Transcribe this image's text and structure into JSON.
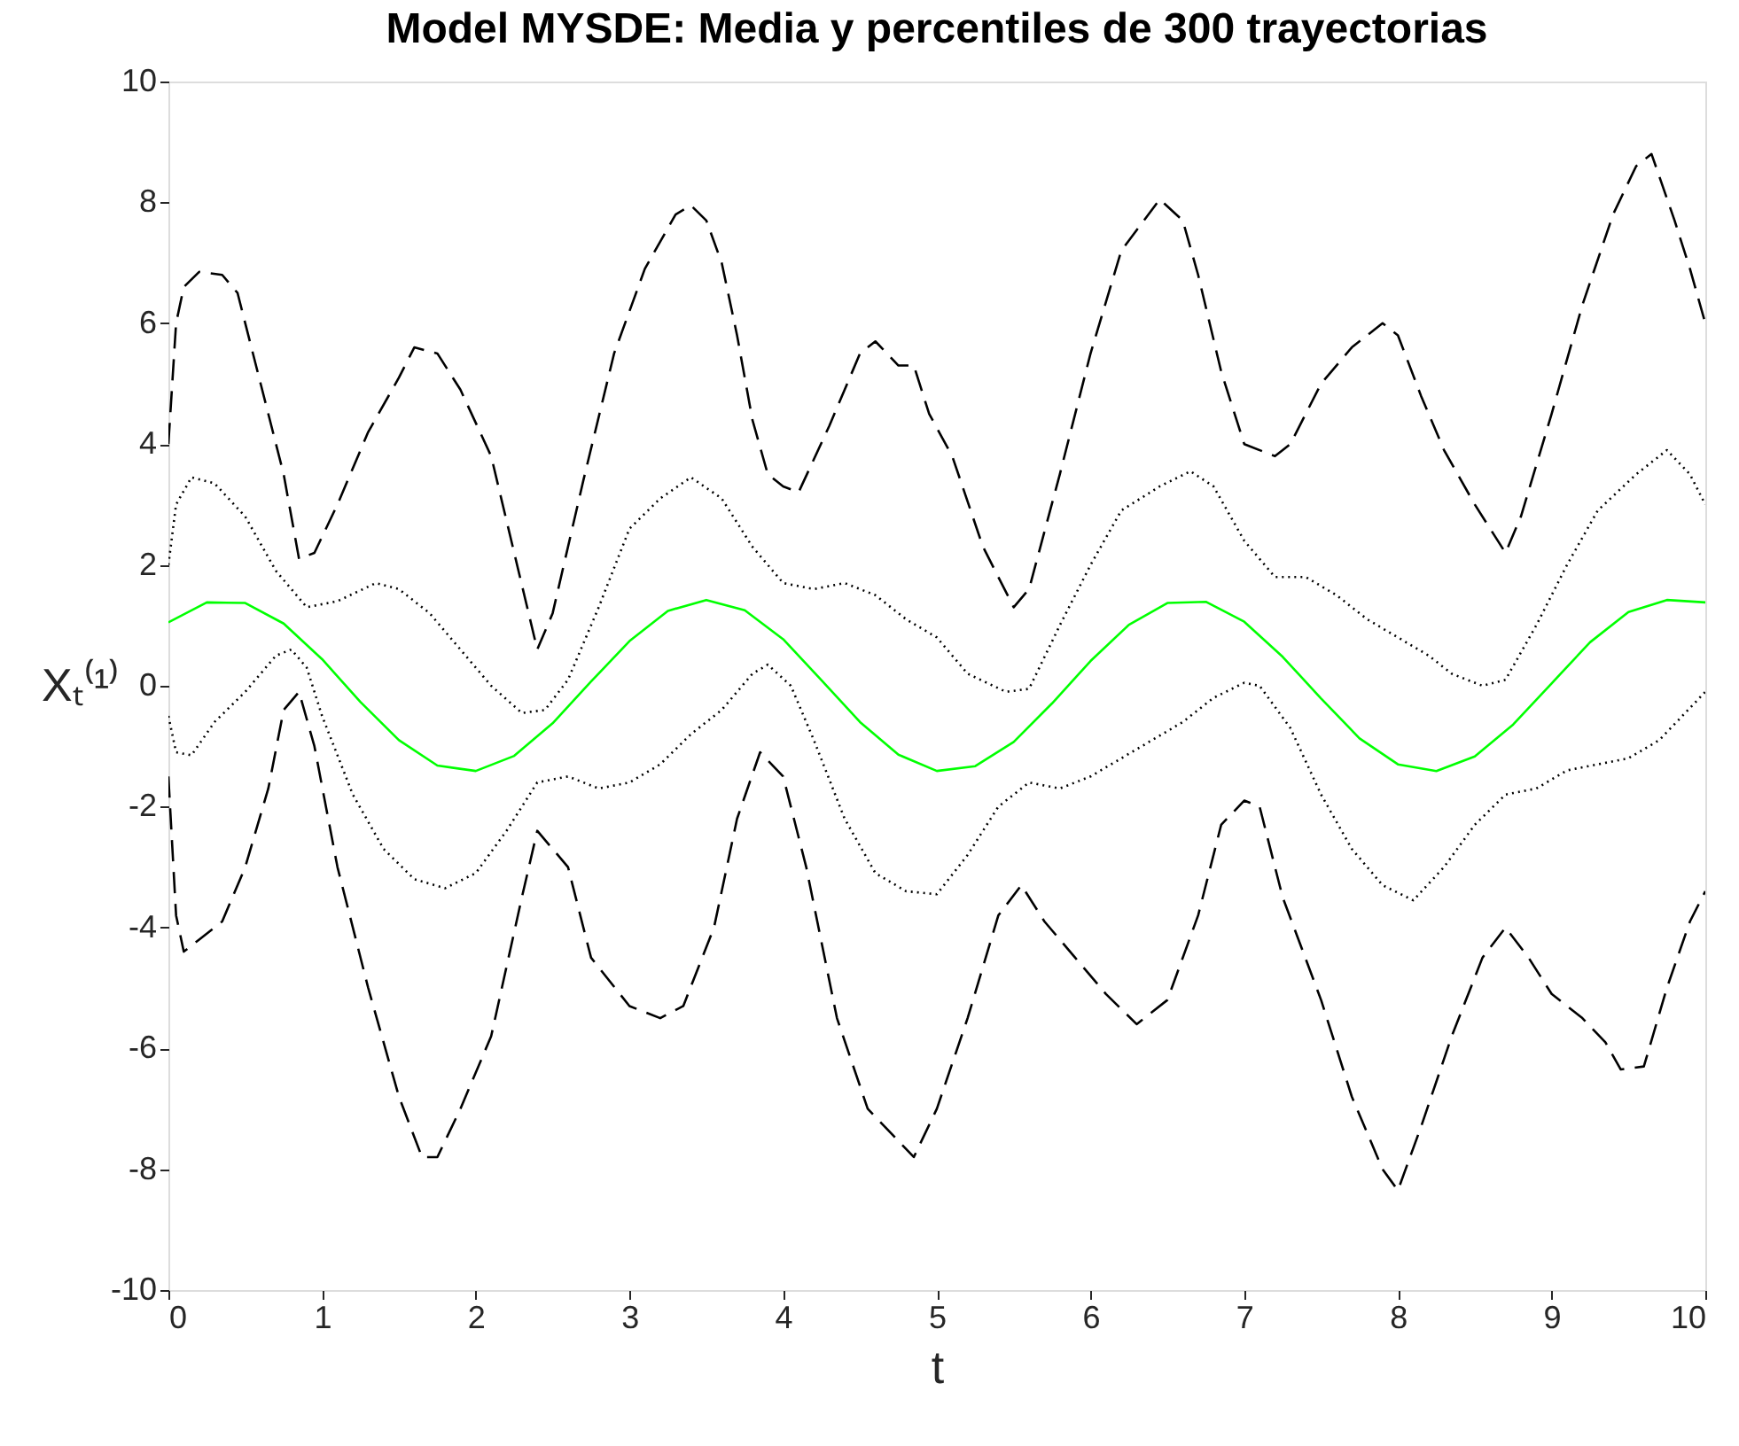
{
  "chart_data": {
    "type": "line",
    "title": "Model MYSDE: Media y percentiles de 300 trayectorias",
    "xlabel": "t",
    "ylabel": "Xₜ⁽¹⁾",
    "xlim": [
      0,
      10
    ],
    "xticks": [
      0,
      1,
      2,
      3,
      4,
      5,
      6,
      7,
      8,
      9,
      10
    ],
    "ylim": [
      -10,
      10
    ],
    "yticks": [
      -10,
      -8,
      -6,
      -4,
      -2,
      0,
      2,
      4,
      6,
      8,
      10
    ],
    "marker": "none",
    "series": [
      {
        "color": "#00ff00",
        "line_style": "solid",
        "x": [
          0,
          0.25,
          0.5,
          0.75,
          1,
          1.25,
          1.5,
          1.75,
          2,
          2.25,
          2.5,
          2.75,
          3,
          3.25,
          3.5,
          3.75,
          4,
          4.25,
          4.5,
          4.75,
          5,
          5.25,
          5.5,
          5.75,
          6,
          6.25,
          6.5,
          6.75,
          7,
          7.25,
          7.5,
          7.75,
          8,
          8.25,
          8.5,
          8.75,
          9,
          9.25,
          9.5,
          9.75,
          10
        ],
        "values": [
          1.05,
          1.38,
          1.37,
          1.03,
          0.44,
          -0.27,
          -0.9,
          -1.32,
          -1.41,
          -1.16,
          -0.62,
          0.07,
          0.74,
          1.24,
          1.42,
          1.25,
          0.77,
          0.09,
          -0.6,
          -1.14,
          -1.41,
          -1.33,
          -0.93,
          -0.29,
          0.41,
          1.01,
          1.37,
          1.39,
          1.06,
          0.48,
          -0.21,
          -0.87,
          -1.3,
          -1.41,
          -1.17,
          -0.64,
          0.04,
          0.72,
          1.22,
          1.42,
          1.38
        ]
      },
      {
        "color": "#000000",
        "line_style": "dashed",
        "x": [
          0,
          0.05,
          0.1,
          0.2,
          0.35,
          0.45,
          0.6,
          0.75,
          0.85,
          0.95,
          1.1,
          1.3,
          1.5,
          1.6,
          1.75,
          1.9,
          2.1,
          2.25,
          2.4,
          2.5,
          2.7,
          2.9,
          3.1,
          3.3,
          3.4,
          3.5,
          3.6,
          3.7,
          3.8,
          3.9,
          4.0,
          4.1,
          4.3,
          4.5,
          4.6,
          4.75,
          4.85,
          4.95,
          5.1,
          5.3,
          5.5,
          5.6,
          5.8,
          6.0,
          6.2,
          6.45,
          6.6,
          6.7,
          6.85,
          7.0,
          7.2,
          7.3,
          7.5,
          7.7,
          7.9,
          8.0,
          8.15,
          8.3,
          8.5,
          8.7,
          8.8,
          9.0,
          9.2,
          9.4,
          9.55,
          9.65,
          9.8,
          9.9,
          10
        ],
        "values": [
          4.0,
          6.0,
          6.6,
          6.85,
          6.8,
          6.5,
          5.0,
          3.5,
          2.1,
          2.2,
          3.0,
          4.2,
          5.1,
          5.6,
          5.5,
          4.9,
          3.8,
          2.2,
          0.6,
          1.2,
          3.4,
          5.5,
          6.9,
          7.8,
          7.95,
          7.7,
          7.0,
          5.8,
          4.4,
          3.5,
          3.3,
          3.2,
          4.3,
          5.5,
          5.7,
          5.3,
          5.3,
          4.5,
          3.8,
          2.3,
          1.3,
          1.6,
          3.5,
          5.5,
          7.2,
          8.05,
          7.7,
          6.8,
          5.2,
          4.0,
          3.8,
          4.0,
          5.0,
          5.6,
          6.0,
          5.8,
          4.8,
          3.9,
          3.0,
          2.2,
          2.8,
          4.5,
          6.3,
          7.8,
          8.6,
          8.8,
          7.7,
          6.9,
          6.0
        ]
      },
      {
        "color": "#000000",
        "line_style": "dotted",
        "x": [
          0,
          0.05,
          0.15,
          0.3,
          0.5,
          0.7,
          0.9,
          1.1,
          1.35,
          1.5,
          1.7,
          1.9,
          2.1,
          2.3,
          2.45,
          2.6,
          2.8,
          3.0,
          3.2,
          3.4,
          3.6,
          3.8,
          4.0,
          4.2,
          4.4,
          4.6,
          4.8,
          5.0,
          5.2,
          5.45,
          5.6,
          5.8,
          6.0,
          6.2,
          6.45,
          6.65,
          6.8,
          7.0,
          7.2,
          7.4,
          7.6,
          7.8,
          8.0,
          8.2,
          8.35,
          8.55,
          8.7,
          8.9,
          9.1,
          9.3,
          9.55,
          9.75,
          9.9,
          10
        ],
        "values": [
          2.0,
          3.0,
          3.45,
          3.35,
          2.8,
          1.9,
          1.3,
          1.4,
          1.7,
          1.6,
          1.2,
          0.6,
          0.0,
          -0.45,
          -0.4,
          0.1,
          1.3,
          2.6,
          3.1,
          3.45,
          3.1,
          2.3,
          1.7,
          1.6,
          1.7,
          1.5,
          1.1,
          0.8,
          0.2,
          -0.1,
          -0.05,
          1.0,
          2.0,
          2.9,
          3.3,
          3.55,
          3.3,
          2.4,
          1.8,
          1.8,
          1.5,
          1.1,
          0.8,
          0.5,
          0.2,
          0.0,
          0.1,
          1.0,
          2.0,
          2.9,
          3.5,
          3.9,
          3.5,
          3.0
        ]
      },
      {
        "color": "#000000",
        "line_style": "dotted",
        "x": [
          0,
          0.05,
          0.15,
          0.3,
          0.5,
          0.7,
          0.8,
          0.9,
          1.0,
          1.2,
          1.4,
          1.6,
          1.8,
          2.0,
          2.2,
          2.4,
          2.6,
          2.8,
          3.0,
          3.2,
          3.4,
          3.6,
          3.8,
          3.9,
          4.05,
          4.2,
          4.4,
          4.6,
          4.8,
          5.0,
          5.2,
          5.4,
          5.6,
          5.8,
          6.0,
          6.2,
          6.4,
          6.6,
          6.8,
          7.0,
          7.1,
          7.3,
          7.5,
          7.7,
          7.9,
          8.1,
          8.3,
          8.5,
          8.7,
          8.9,
          9.1,
          9.3,
          9.5,
          9.7,
          9.85,
          10
        ],
        "values": [
          -0.5,
          -1.1,
          -1.15,
          -0.6,
          -0.1,
          0.5,
          0.6,
          0.3,
          -0.5,
          -1.8,
          -2.7,
          -3.2,
          -3.35,
          -3.1,
          -2.4,
          -1.6,
          -1.5,
          -1.7,
          -1.6,
          -1.3,
          -0.8,
          -0.4,
          0.2,
          0.35,
          0.0,
          -0.9,
          -2.2,
          -3.1,
          -3.4,
          -3.45,
          -2.8,
          -2.0,
          -1.6,
          -1.7,
          -1.5,
          -1.2,
          -0.9,
          -0.6,
          -0.2,
          0.05,
          0.0,
          -0.7,
          -1.8,
          -2.7,
          -3.3,
          -3.55,
          -3.0,
          -2.3,
          -1.8,
          -1.7,
          -1.4,
          -1.3,
          -1.2,
          -0.9,
          -0.5,
          -0.1
        ]
      },
      {
        "color": "#000000",
        "line_style": "dashed",
        "x": [
          0,
          0.05,
          0.1,
          0.2,
          0.35,
          0.5,
          0.65,
          0.75,
          0.85,
          0.95,
          1.1,
          1.3,
          1.5,
          1.65,
          1.75,
          1.9,
          2.1,
          2.3,
          2.4,
          2.5,
          2.6,
          2.75,
          3.0,
          3.2,
          3.35,
          3.55,
          3.7,
          3.85,
          4.0,
          4.15,
          4.35,
          4.55,
          4.7,
          4.85,
          5.0,
          5.2,
          5.4,
          5.55,
          5.7,
          5.9,
          6.1,
          6.3,
          6.5,
          6.7,
          6.85,
          7.0,
          7.1,
          7.25,
          7.5,
          7.7,
          7.9,
          8.0,
          8.15,
          8.35,
          8.55,
          8.7,
          8.85,
          9.0,
          9.2,
          9.35,
          9.45,
          9.6,
          9.75,
          9.9,
          10
        ],
        "values": [
          -1.5,
          -3.8,
          -4.4,
          -4.2,
          -3.9,
          -3.0,
          -1.7,
          -0.4,
          -0.1,
          -1.0,
          -3.0,
          -5.0,
          -6.8,
          -7.8,
          -7.8,
          -7.0,
          -5.8,
          -3.5,
          -2.4,
          -2.7,
          -3.0,
          -4.5,
          -5.3,
          -5.5,
          -5.3,
          -4.0,
          -2.2,
          -1.1,
          -1.5,
          -3.0,
          -5.5,
          -7.0,
          -7.4,
          -7.8,
          -7.0,
          -5.5,
          -3.8,
          -3.3,
          -3.9,
          -4.5,
          -5.1,
          -5.6,
          -5.2,
          -3.8,
          -2.3,
          -1.9,
          -2.0,
          -3.5,
          -5.2,
          -6.8,
          -8.0,
          -8.35,
          -7.3,
          -5.8,
          -4.5,
          -4.0,
          -4.5,
          -5.1,
          -5.5,
          -5.9,
          -6.35,
          -6.3,
          -5.0,
          -3.9,
          -3.4
        ]
      }
    ]
  }
}
